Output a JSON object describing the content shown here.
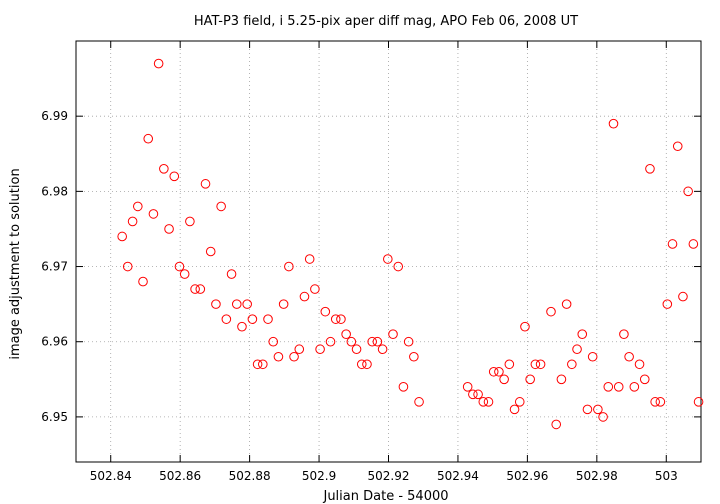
{
  "chart_data": {
    "type": "scatter",
    "title": "HAT-P3 field, i 5.25-pix aper diff mag, APO Feb 06, 2008 UT",
    "xlabel": "Julian Date - 54000",
    "ylabel": "image adjustment to solution",
    "xlim": [
      502.83,
      503.01
    ],
    "ylim": [
      6.944,
      7.0
    ],
    "xticks": [
      502.84,
      502.86,
      502.88,
      502.9,
      502.92,
      502.94,
      502.96,
      502.98,
      503
    ],
    "xtick_labels": [
      "502.84",
      "502.86",
      "502.88",
      "502.9",
      "502.92",
      "502.94",
      "502.96",
      "502.98",
      "503"
    ],
    "yticks": [
      6.95,
      6.96,
      6.97,
      6.98,
      6.99
    ],
    "ytick_labels": [
      "6.95",
      "6.96",
      "6.97",
      "6.98",
      "6.99"
    ],
    "grid": true,
    "marker": "open-circle",
    "marker_color": "#ff0000",
    "series": [
      {
        "points": [
          [
            502.8433,
            6.974
          ],
          [
            502.8449,
            6.97
          ],
          [
            502.8463,
            6.976
          ],
          [
            502.8478,
            6.978
          ],
          [
            502.8493,
            6.968
          ],
          [
            502.8508,
            6.987
          ],
          [
            502.8523,
            6.977
          ],
          [
            502.8538,
            6.997
          ],
          [
            502.8553,
            6.983
          ],
          [
            502.8568,
            6.975
          ],
          [
            502.8583,
            6.982
          ],
          [
            502.8598,
            6.97
          ],
          [
            502.8613,
            6.969
          ],
          [
            502.8628,
            6.976
          ],
          [
            502.8643,
            6.967
          ],
          [
            502.8658,
            6.967
          ],
          [
            502.8673,
            6.981
          ],
          [
            502.8688,
            6.972
          ],
          [
            502.8703,
            6.965
          ],
          [
            502.8718,
            6.978
          ],
          [
            502.8733,
            6.963
          ],
          [
            502.8748,
            6.969
          ],
          [
            502.8763,
            6.965
          ],
          [
            502.8778,
            6.962
          ],
          [
            502.8793,
            6.965
          ],
          [
            502.8808,
            6.963
          ],
          [
            502.8823,
            6.957
          ],
          [
            502.8838,
            6.957
          ],
          [
            502.8853,
            6.963
          ],
          [
            502.8868,
            6.96
          ],
          [
            502.8883,
            6.958
          ],
          [
            502.8898,
            6.965
          ],
          [
            502.8913,
            6.97
          ],
          [
            502.8928,
            6.958
          ],
          [
            502.8943,
            6.959
          ],
          [
            502.8958,
            6.966
          ],
          [
            502.8973,
            6.971
          ],
          [
            502.8988,
            6.967
          ],
          [
            502.9003,
            6.959
          ],
          [
            502.9018,
            6.964
          ],
          [
            502.9033,
            6.96
          ],
          [
            502.9048,
            6.963
          ],
          [
            502.9063,
            6.963
          ],
          [
            502.9078,
            6.961
          ],
          [
            502.9093,
            6.96
          ],
          [
            502.9108,
            6.959
          ],
          [
            502.9123,
            6.957
          ],
          [
            502.9138,
            6.957
          ],
          [
            502.9153,
            6.96
          ],
          [
            502.9168,
            6.96
          ],
          [
            502.9183,
            6.959
          ],
          [
            502.9198,
            6.971
          ],
          [
            502.9213,
            6.961
          ],
          [
            502.9228,
            6.97
          ],
          [
            502.9243,
            6.954
          ],
          [
            502.9258,
            6.96
          ],
          [
            502.9273,
            6.958
          ],
          [
            502.9288,
            6.952
          ],
          [
            502.9428,
            6.954
          ],
          [
            502.9443,
            6.953
          ],
          [
            502.9458,
            6.953
          ],
          [
            502.9473,
            6.952
          ],
          [
            502.9488,
            6.952
          ],
          [
            502.9503,
            6.956
          ],
          [
            502.9518,
            6.956
          ],
          [
            502.9533,
            6.955
          ],
          [
            502.9548,
            6.957
          ],
          [
            502.9563,
            6.951
          ],
          [
            502.9578,
            6.952
          ],
          [
            502.9593,
            6.962
          ],
          [
            502.9608,
            6.955
          ],
          [
            502.9623,
            6.957
          ],
          [
            502.9638,
            6.957
          ],
          [
            502.9668,
            6.964
          ],
          [
            502.9683,
            6.949
          ],
          [
            502.9698,
            6.955
          ],
          [
            502.9713,
            6.965
          ],
          [
            502.9728,
            6.957
          ],
          [
            502.9743,
            6.959
          ],
          [
            502.9758,
            6.961
          ],
          [
            502.9773,
            6.951
          ],
          [
            502.9788,
            6.958
          ],
          [
            502.9803,
            6.951
          ],
          [
            502.9818,
            6.95
          ],
          [
            502.9833,
            6.954
          ],
          [
            502.9848,
            6.989
          ],
          [
            502.9863,
            6.954
          ],
          [
            502.9878,
            6.961
          ],
          [
            502.9893,
            6.958
          ],
          [
            502.9908,
            6.954
          ],
          [
            502.9923,
            6.957
          ],
          [
            502.9938,
            6.955
          ],
          [
            502.9953,
            6.983
          ],
          [
            502.9968,
            6.952
          ],
          [
            502.9983,
            6.952
          ],
          [
            503.0003,
            6.965
          ],
          [
            503.0018,
            6.973
          ],
          [
            503.0033,
            6.986
          ],
          [
            503.0048,
            6.966
          ],
          [
            503.0063,
            6.98
          ],
          [
            503.0078,
            6.973
          ],
          [
            503.0093,
            6.952
          ]
        ]
      }
    ]
  }
}
